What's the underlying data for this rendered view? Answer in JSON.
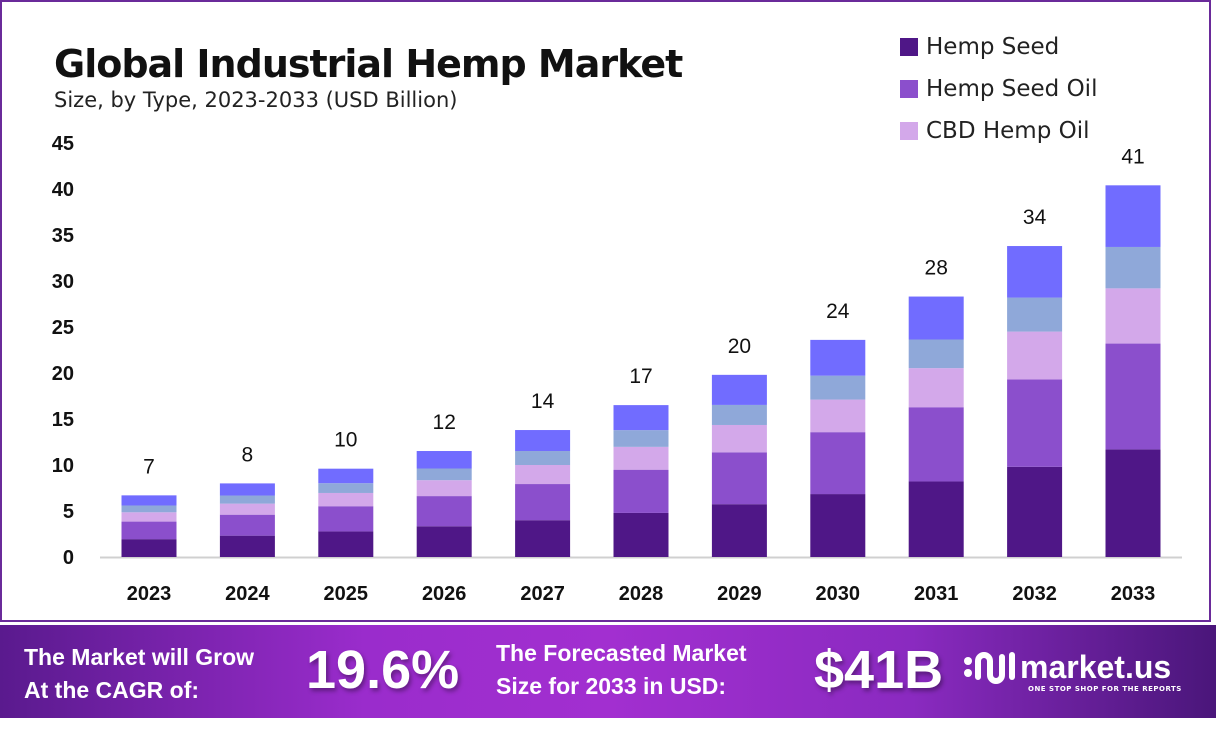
{
  "title": "Global Industrial Hemp Market",
  "subtitle": "Size, by Type, 2023-2033 (USD Billion)",
  "chart_data": {
    "type": "bar",
    "stacked": true,
    "title": "Global Industrial Hemp Market",
    "subtitle": "Size, by Type, 2023-2033 (USD Billion)",
    "xlabel": "",
    "ylabel": "",
    "ylim": [
      0,
      45
    ],
    "yticks": [
      0,
      5,
      10,
      15,
      20,
      25,
      30,
      35,
      40,
      45
    ],
    "grid": false,
    "legend_position": "top-right",
    "categories": [
      "2023",
      "2024",
      "2025",
      "2026",
      "2027",
      "2028",
      "2029",
      "2030",
      "2031",
      "2032",
      "2033"
    ],
    "totals_labels": [
      "7",
      "8",
      "10",
      "12",
      "14",
      "17",
      "20",
      "24",
      "28",
      "34",
      "41"
    ],
    "series": [
      {
        "name": "Hemp Seed",
        "color": "#4f1787",
        "values": [
          1.94,
          2.32,
          2.78,
          3.34,
          4.0,
          4.79,
          5.74,
          6.84,
          8.21,
          9.8,
          11.7
        ]
      },
      {
        "name": "Hemp Seed Oil",
        "color": "#8b4fcc",
        "values": [
          1.91,
          2.28,
          2.74,
          3.28,
          3.93,
          4.7,
          5.64,
          6.73,
          8.07,
          9.5,
          11.5
        ]
      },
      {
        "name": "CBD Hemp Oil",
        "color": "#d3a8ea",
        "values": [
          1.01,
          1.2,
          1.44,
          1.73,
          2.07,
          2.48,
          2.97,
          3.54,
          4.25,
          5.2,
          6.0
        ]
      },
      {
        "color": "#8fa8d9",
        "values": [
          0.74,
          0.88,
          1.06,
          1.27,
          1.52,
          1.82,
          2.18,
          2.6,
          3.11,
          3.7,
          4.5
        ]
      },
      {
        "color": "#716cff",
        "values": [
          1.1,
          1.32,
          1.58,
          1.9,
          2.28,
          2.72,
          3.27,
          3.89,
          4.67,
          5.6,
          6.7
        ]
      }
    ]
  },
  "footer": {
    "cagr_text_line1": "The Market will Grow",
    "cagr_text_line2": "At the CAGR of:",
    "cagr_value": "19.6%",
    "forecast_text_line1": "The Forecasted Market",
    "forecast_text_line2": "Size for 2033 in USD:",
    "forecast_value": "$41B",
    "logo_name": "market.us",
    "logo_tagline": "ONE STOP SHOP FOR THE REPORTS"
  }
}
